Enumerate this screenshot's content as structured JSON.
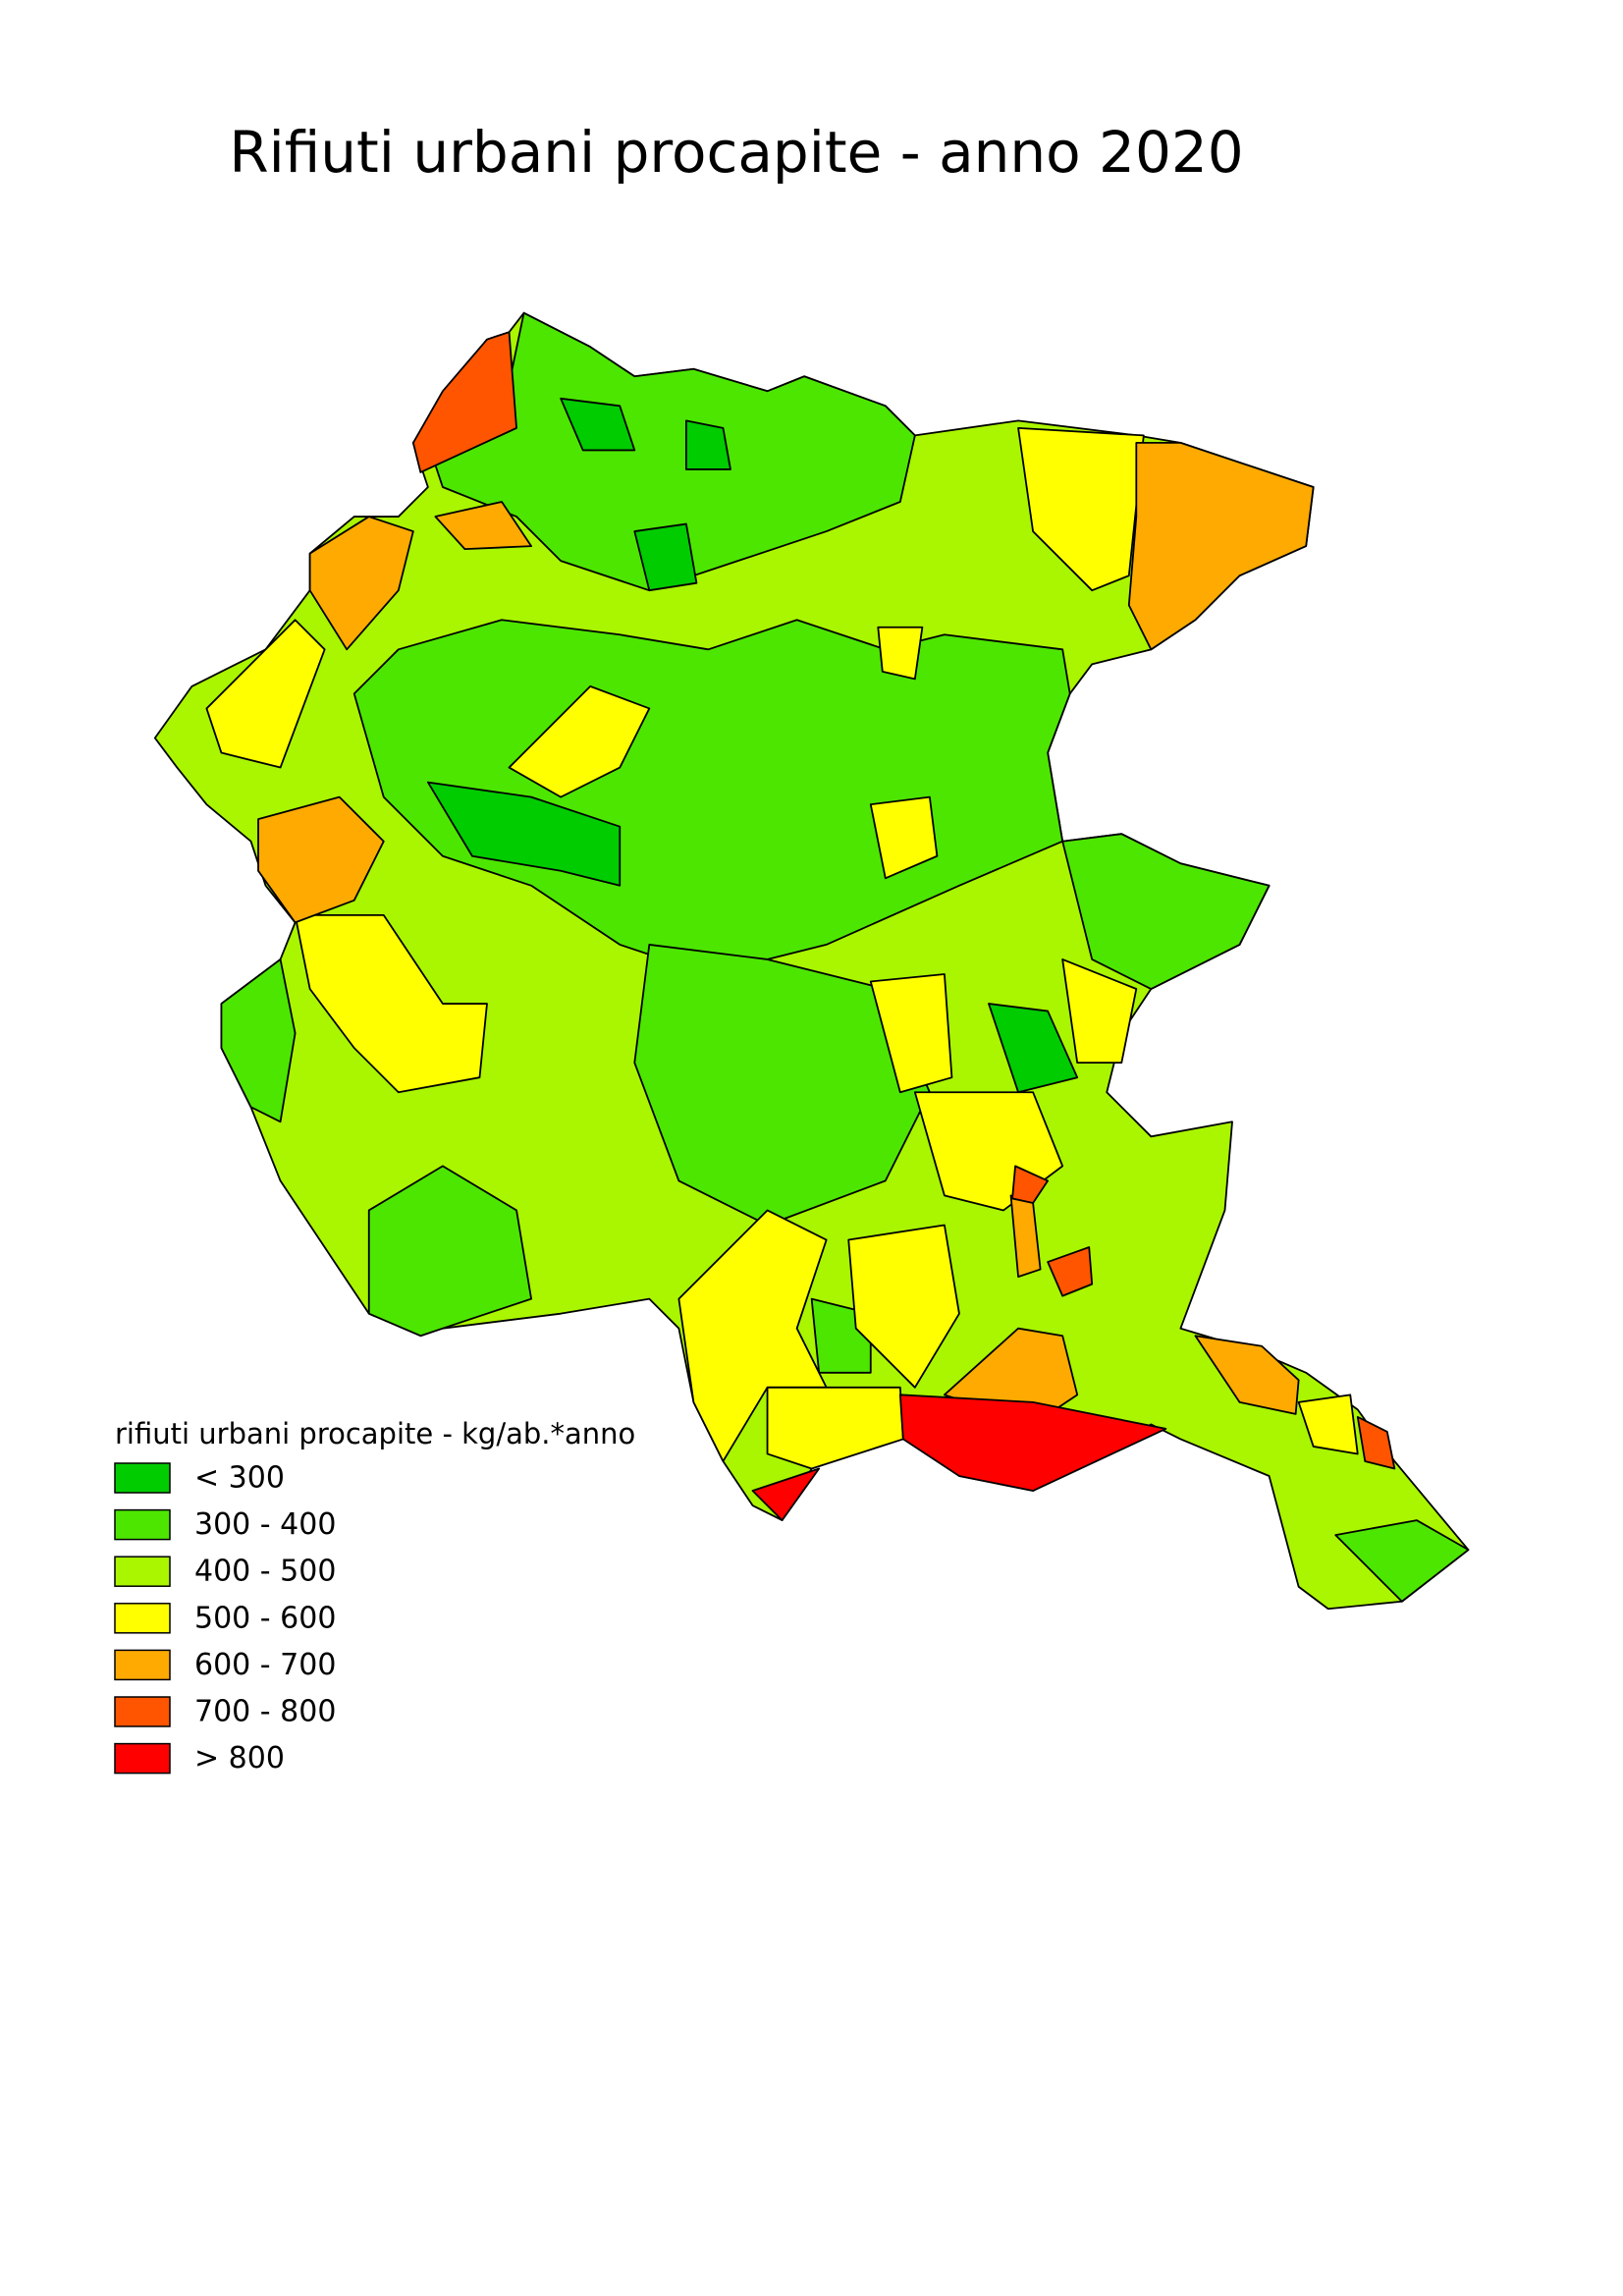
{
  "title": "Rifiuti urbani procapite - anno 2020",
  "legend": {
    "title": "rifiuti urbani procapite - kg/ab.*anno",
    "items": [
      {
        "label": "< 300",
        "color": "#00cc00"
      },
      {
        "label": "300 - 400",
        "color": "#4de600"
      },
      {
        "label": "400 - 500",
        "color": "#aaf500"
      },
      {
        "label": "500 - 600",
        "color": "#ffff00"
      },
      {
        "label": "600 - 700",
        "color": "#ffaa00"
      },
      {
        "label": "700 - 800",
        "color": "#ff5500"
      },
      {
        "label": "> 800",
        "color": "#ff0000"
      }
    ]
  }
}
